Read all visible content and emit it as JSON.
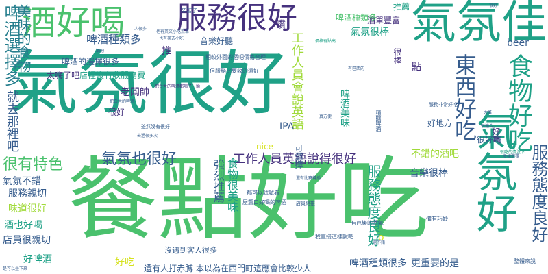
{
  "palette": {
    "purple": "#46327e",
    "indigo": "#365c8d",
    "blue": "#277f8e",
    "teal": "#1fa187",
    "green": "#4ac16d",
    "lime": "#a0da39",
    "yellow": "#d6e21f"
  },
  "words": [
    {
      "text": "氣氛很好"
    },
    {
      "text": "餐點好吃"
    },
    {
      "text": "氣氛好"
    },
    {
      "text": "服務很好"
    },
    {
      "text": "氣氛佳"
    },
    {
      "text": "酒好喝"
    },
    {
      "text": "食物好吃"
    },
    {
      "text": "東西好吃"
    },
    {
      "text": "服務態度良好"
    },
    {
      "text": "服務態度良好"
    },
    {
      "text": "工作人員英語說得很好"
    },
    {
      "text": "工作人員會說英語"
    },
    {
      "text": "氣氛也很好"
    },
    {
      "text": "很有特色"
    },
    {
      "text": "啤酒選擇多"
    },
    {
      "text": "美味的食物"
    },
    {
      "text": "啤酒種類多"
    },
    {
      "text": "食物很美味"
    },
    {
      "text": "就去那裡吧"
    },
    {
      "text": "強烈推薦"
    },
    {
      "text": "氣氛不錯"
    },
    {
      "text": "服務親切"
    },
    {
      "text": "味道很好"
    },
    {
      "text": "酒也好喝"
    },
    {
      "text": "店員很親切"
    },
    {
      "text": "好啤酒"
    },
    {
      "text": "好吃"
    },
    {
      "text": "啤酒種類很多"
    },
    {
      "text": "更重要的是"
    },
    {
      "text": "音樂很棒"
    },
    {
      "text": "不錯的酒吧"
    },
    {
      "text": "IPA"
    },
    {
      "text": "nice"
    },
    {
      "text": "很好喝"
    },
    {
      "text": "好地方"
    },
    {
      "text": "老闆帥"
    },
    {
      "text": "很好"
    },
    {
      "text": "啤酒美味"
    },
    {
      "text": "氣氛很棒"
    },
    {
      "text": "beer"
    },
    {
      "text": "推薦"
    },
    {
      "text": "酒單豐富"
    },
    {
      "text": "音樂好聽"
    },
    {
      "text": "啤酒種類多"
    },
    {
      "text": "啤酒的選擇很多"
    },
    {
      "text": "太嗨了吧"
    },
    {
      "text": "店裡沒有收服務費"
    },
    {
      "text": "推"
    },
    {
      "text": "讚"
    },
    {
      "text": "很棒"
    },
    {
      "text": "點"
    },
    {
      "text": "好喝"
    },
    {
      "text": "可選擇"
    },
    {
      "text": "還有人打赤膊"
    },
    {
      "text": "本以為在西門町這應會比較少人"
    },
    {
      "text": "沒遇到客人很多"
    },
    {
      "text": "o"
    },
    {
      "text": "很好"
    },
    {
      "text": "辛苦了"
    },
    {
      "text": "也有英文小吃菜單"
    },
    {
      "text": "也有英式小吃"
    },
    {
      "text": "價格有點高"
    },
    {
      "text": "相較外面的酒吧價格合理"
    },
    {
      "text": "但服務比要收的還好"
    },
    {
      "text": "把台大的啤酒都喝了一輪"
    },
    {
      "text": "把白大的啤酒"
    },
    {
      "text": "雖然沒有很好"
    },
    {
      "text": "有巴西的"
    },
    {
      "text": "我直接這樣說吧"
    },
    {
      "text": "屋簷口好喝的啤酒"
    },
    {
      "text": "都可以試試看"
    },
    {
      "text": "還有比賽轉播"
    },
    {
      "text": "店員給推"
    },
    {
      "text": "有芭樂的香氣"
    },
    {
      "text": "備有巧妙"
    },
    {
      "text": "服務非常好吃"
    },
    {
      "text": "很吃的情況下"
    },
    {
      "text": "多樣選擇"
    },
    {
      "text": "精釀啤酒"
    },
    {
      "text": "整體來說"
    },
    {
      "text": "大推"
    },
    {
      "text": "真方便"
    },
    {
      "text": "很適合"
    },
    {
      "text": "還不錯"
    },
    {
      "text": "酒吧"
    },
    {
      "text": "人很多"
    },
    {
      "text": "去過很多次"
    },
    {
      "text": "是可以坐下來"
    }
  ]
}
